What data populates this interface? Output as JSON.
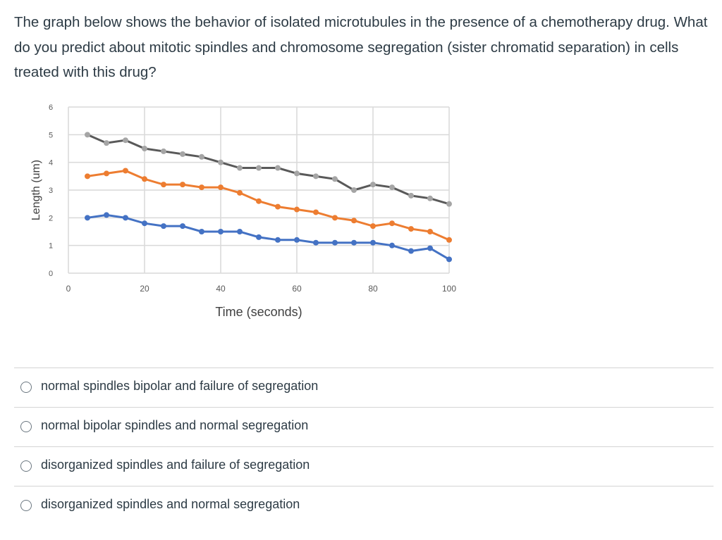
{
  "question": "The graph below shows the behavior of isolated microtubules in the presence of a chemotherapy drug. What do you predict about mitotic spindles and chromosome segregation (sister chromatid separation) in cells treated with this drug?",
  "chart_data": {
    "type": "line",
    "xlabel": "Time (seconds)",
    "ylabel": "Length (um)",
    "xlim": [
      0,
      100
    ],
    "ylim": [
      0,
      6
    ],
    "xticks": [
      "0",
      "20",
      "40",
      "60",
      "80",
      "100"
    ],
    "yticks": [
      "0",
      "1",
      "2",
      "3",
      "4",
      "5",
      "6"
    ],
    "grid": true,
    "x": [
      5,
      10,
      15,
      20,
      25,
      30,
      35,
      40,
      45,
      50,
      55,
      60,
      65,
      70,
      75,
      80,
      85,
      90,
      95,
      100
    ],
    "series": [
      {
        "color": "#595959",
        "marker": "#a5a5a5",
        "values": [
          5.0,
          4.7,
          4.8,
          4.5,
          4.4,
          4.3,
          4.2,
          4.0,
          3.8,
          3.8,
          3.8,
          3.6,
          3.5,
          3.4,
          3.0,
          3.2,
          3.1,
          2.8,
          2.7,
          2.5
        ]
      },
      {
        "color": "#ed7d31",
        "marker": "#ed7d31",
        "values": [
          3.5,
          3.6,
          3.7,
          3.4,
          3.2,
          3.2,
          3.1,
          3.1,
          2.9,
          2.6,
          2.4,
          2.3,
          2.2,
          2.0,
          1.9,
          1.7,
          1.8,
          1.6,
          1.5,
          1.2
        ]
      },
      {
        "color": "#4472c4",
        "marker": "#4472c4",
        "values": [
          2.0,
          2.1,
          2.0,
          1.8,
          1.7,
          1.7,
          1.5,
          1.5,
          1.5,
          1.3,
          1.2,
          1.2,
          1.1,
          1.1,
          1.1,
          1.1,
          1.0,
          0.8,
          0.9,
          0.5
        ]
      }
    ]
  },
  "options": [
    "normal spindles bipolar and failure of segregation",
    "normal bipolar spindles and normal segregation",
    "disorganized spindles and failure of segregation",
    "disorganized spindles and normal segregation"
  ]
}
